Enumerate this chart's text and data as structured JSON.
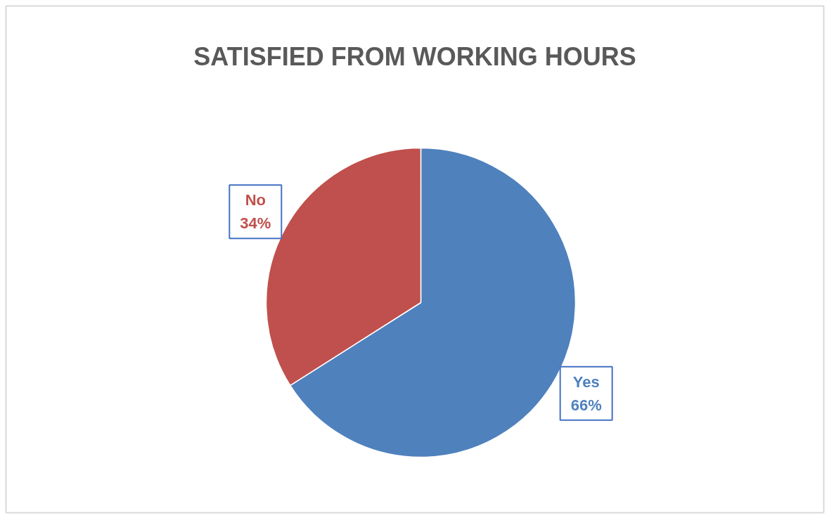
{
  "chart_data": {
    "type": "pie",
    "title": "SATISFIED FROM WORKING HOURS",
    "categories": [
      "Yes",
      "No"
    ],
    "values": [
      66,
      34
    ],
    "colors": [
      "#4f81bd",
      "#c0504d"
    ],
    "value_labels": [
      "66%",
      "34%"
    ]
  }
}
